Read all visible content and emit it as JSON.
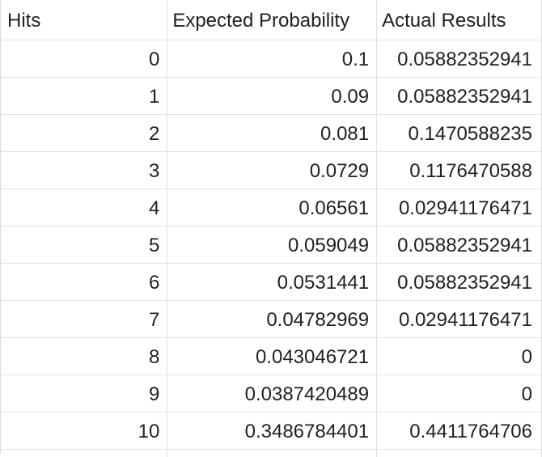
{
  "table": {
    "headers": [
      "Hits",
      "Expected Probability",
      "Actual Results"
    ],
    "rows": [
      [
        "0",
        "0.1",
        "0.05882352941"
      ],
      [
        "1",
        "0.09",
        "0.05882352941"
      ],
      [
        "2",
        "0.081",
        "0.1470588235"
      ],
      [
        "3",
        "0.0729",
        "0.1176470588"
      ],
      [
        "4",
        "0.06561",
        "0.02941176471"
      ],
      [
        "5",
        "0.059049",
        "0.05882352941"
      ],
      [
        "6",
        "0.0531441",
        "0.05882352941"
      ],
      [
        "7",
        "0.04782969",
        "0.02941176471"
      ],
      [
        "8",
        "0.043046721",
        "0"
      ],
      [
        "9",
        "0.0387420489",
        "0"
      ],
      [
        "10",
        "0.3486784401",
        "0.4411764706"
      ]
    ]
  }
}
